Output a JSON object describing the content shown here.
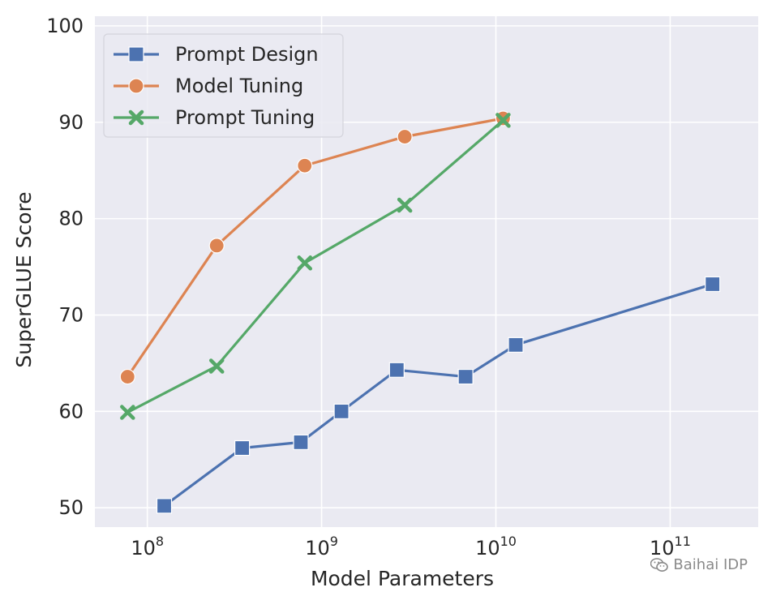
{
  "chart_data": {
    "type": "line",
    "xlabel": "Model Parameters",
    "ylabel": "SuperGLUE Score",
    "x_scale": "log",
    "xlim": [
      50000000,
      320000000000
    ],
    "ylim": [
      48,
      101
    ],
    "xticks": [
      {
        "value": 100000000,
        "base": "10",
        "exp": "8"
      },
      {
        "value": 1000000000,
        "base": "10",
        "exp": "9"
      },
      {
        "value": 10000000000,
        "base": "10",
        "exp": "10"
      },
      {
        "value": 100000000000,
        "base": "10",
        "exp": "11"
      }
    ],
    "yticks": [
      50,
      60,
      70,
      80,
      90,
      100
    ],
    "grid": true,
    "legend_position": "top-left",
    "series": [
      {
        "name": "Prompt Design",
        "color": "#4c72b0",
        "marker": "square",
        "points": [
          {
            "x": 125000000,
            "y": 50.2
          },
          {
            "x": 350000000,
            "y": 56.2
          },
          {
            "x": 760000000,
            "y": 56.8
          },
          {
            "x": 1300000000,
            "y": 60.0
          },
          {
            "x": 2700000000,
            "y": 64.3
          },
          {
            "x": 6700000000,
            "y": 63.6
          },
          {
            "x": 13000000000,
            "y": 66.9
          },
          {
            "x": 175000000000,
            "y": 73.2
          }
        ]
      },
      {
        "name": "Model Tuning",
        "color": "#dd8452",
        "marker": "circle",
        "points": [
          {
            "x": 77000000,
            "y": 63.6
          },
          {
            "x": 250000000,
            "y": 77.2
          },
          {
            "x": 800000000,
            "y": 85.5
          },
          {
            "x": 3000000000,
            "y": 88.5
          },
          {
            "x": 11000000000,
            "y": 90.4
          }
        ]
      },
      {
        "name": "Prompt Tuning",
        "color": "#55a868",
        "marker": "x",
        "points": [
          {
            "x": 77000000,
            "y": 59.9
          },
          {
            "x": 250000000,
            "y": 64.7
          },
          {
            "x": 800000000,
            "y": 75.4
          },
          {
            "x": 3000000000,
            "y": 81.4
          },
          {
            "x": 11000000000,
            "y": 90.2
          }
        ]
      }
    ]
  },
  "watermark": {
    "text": "Baihai IDP",
    "icon": "wechat-icon"
  }
}
